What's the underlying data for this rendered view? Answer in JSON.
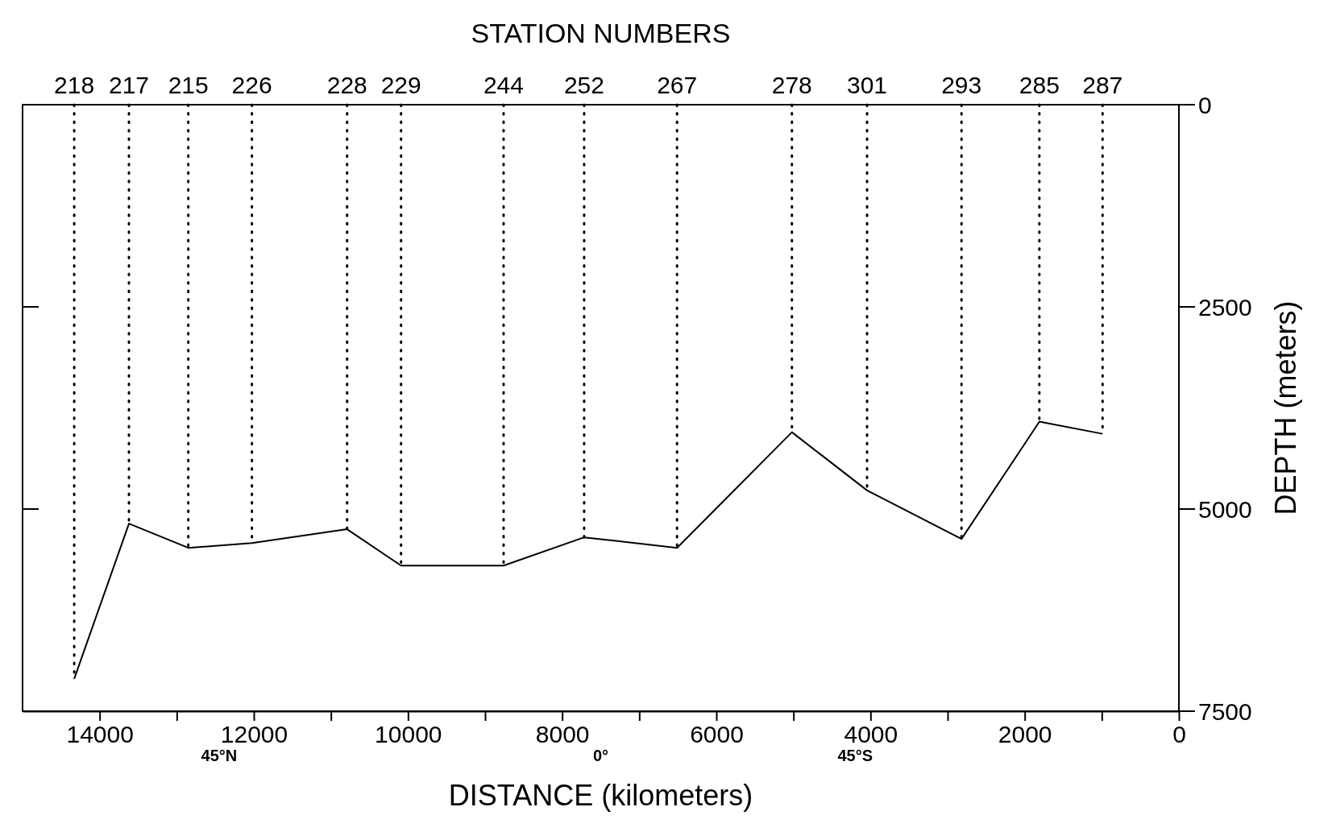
{
  "chart_data": {
    "type": "line",
    "x2label": "STATION NUMBERS",
    "xlabel": "DISTANCE (kilometers)",
    "ylabel": "DEPTH (meters)",
    "x": [
      14330,
      13620,
      12850,
      12025,
      10790,
      10090,
      8760,
      7715,
      6510,
      5020,
      4045,
      2820,
      1810,
      990
    ],
    "series": [
      {
        "color": "#000000",
        "values": [
          7100,
          5180,
          5480,
          5420,
          5250,
          5700,
          5700,
          5350,
          5480,
          4050,
          4770,
          5370,
          3920,
          4070
        ]
      }
    ],
    "xlim": [
      15000,
      0
    ],
    "xticks": [
      {
        "value": 14000,
        "label": "14000"
      },
      {
        "value": 13000,
        "label": null
      },
      {
        "value": 12000,
        "label": "12000"
      },
      {
        "value": 11000,
        "label": null
      },
      {
        "value": 10000,
        "label": "10000"
      },
      {
        "value": 9000,
        "label": null
      },
      {
        "value": 8000,
        "label": "8000"
      },
      {
        "value": 7000,
        "label": null
      },
      {
        "value": 6000,
        "label": "6000"
      },
      {
        "value": 5000,
        "label": null
      },
      {
        "value": 4000,
        "label": "4000"
      },
      {
        "value": 3000,
        "label": null
      },
      {
        "value": 2000,
        "label": "2000"
      },
      {
        "value": 1000,
        "label": null
      },
      {
        "value": 0,
        "label": "0"
      }
    ],
    "ylim": [
      7500,
      0
    ],
    "yticks": [
      0,
      2500,
      5000,
      7500
    ],
    "ref_lines": [
      {
        "axis": "x",
        "value": 14330,
        "line_style": "dotted"
      },
      {
        "axis": "x",
        "value": 13620,
        "line_style": "dotted"
      },
      {
        "axis": "x",
        "value": 12850,
        "line_style": "dotted"
      },
      {
        "axis": "x",
        "value": 12025,
        "line_style": "dotted"
      },
      {
        "axis": "x",
        "value": 10790,
        "line_style": "dotted"
      },
      {
        "axis": "x",
        "value": 10090,
        "line_style": "dotted"
      },
      {
        "axis": "x",
        "value": 8760,
        "line_style": "dotted"
      },
      {
        "axis": "x",
        "value": 7715,
        "line_style": "dotted"
      },
      {
        "axis": "x",
        "value": 6510,
        "line_style": "dotted"
      },
      {
        "axis": "x",
        "value": 5020,
        "line_style": "dotted"
      },
      {
        "axis": "x",
        "value": 4045,
        "line_style": "dotted"
      },
      {
        "axis": "x",
        "value": 2820,
        "line_style": "dotted"
      },
      {
        "axis": "x",
        "value": 1810,
        "line_style": "dotted"
      },
      {
        "axis": "x",
        "value": 990,
        "line_style": "dotted"
      }
    ],
    "annotations": [
      {
        "text": "218",
        "x": 14330,
        "y": 0
      },
      {
        "text": "217",
        "x": 13620,
        "y": 0
      },
      {
        "text": "215",
        "x": 12850,
        "y": 0
      },
      {
        "text": "226",
        "x": 12025,
        "y": 0
      },
      {
        "text": "228",
        "x": 10790,
        "y": 0
      },
      {
        "text": "229",
        "x": 10090,
        "y": 0
      },
      {
        "text": "244",
        "x": 8760,
        "y": 0
      },
      {
        "text": "252",
        "x": 7715,
        "y": 0
      },
      {
        "text": "267",
        "x": 6510,
        "y": 0
      },
      {
        "text": "278",
        "x": 5020,
        "y": 0
      },
      {
        "text": "301",
        "x": 4045,
        "y": 0
      },
      {
        "text": "293",
        "x": 2820,
        "y": 0
      },
      {
        "text": "285",
        "x": 1810,
        "y": 0
      },
      {
        "text": "287",
        "x": 990,
        "y": 0
      },
      "45°N",
      "0°",
      "45°S"
    ],
    "marker": "none",
    "line_style": "solid"
  }
}
